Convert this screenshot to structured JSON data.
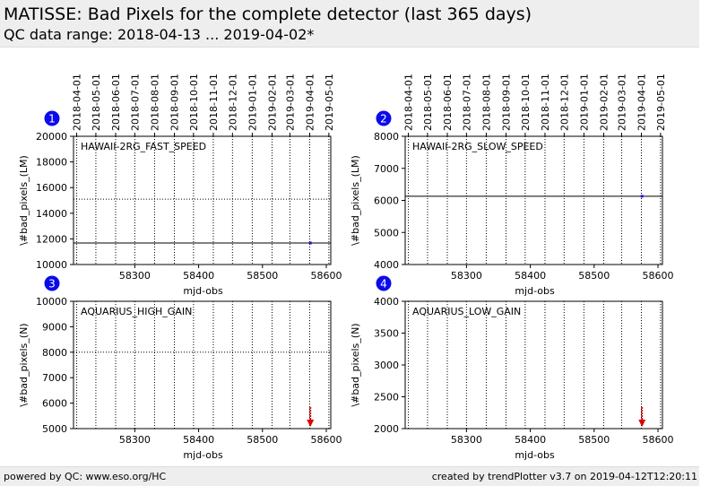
{
  "page": {
    "title": "MATISSE: Bad Pixels for the complete detector (last 365 days)",
    "subtitle": "QC data range: 2018-04-13 ... 2019-04-02*"
  },
  "footer": {
    "left": "powered by QC: www.eso.org/HC",
    "right": "created by trendPlotter v3.7 on 2019-04-12T12:20:11"
  },
  "colors": {
    "data_point": "#1a1ad4",
    "marker_badge": "#0b0bea",
    "arrow": "#dd0000",
    "axis": "#000000"
  },
  "chart_data": [
    {
      "type": "scatter",
      "panel_number": "1",
      "label": "HAWAII-2RG_FAST_SPEED",
      "xlabel": "mjd-obs",
      "ylabel": "\\#bad_pixels_(LM)",
      "xlim": [
        58204,
        58607
      ],
      "ylim": [
        10000,
        20000
      ],
      "xticks": [
        58300,
        58400,
        58500,
        58600
      ],
      "yticks": [
        10000,
        12000,
        14000,
        16000,
        18000,
        20000
      ],
      "ytick_labels": [
        "10000",
        "12000",
        "14000",
        "16000",
        "18000",
        "20000"
      ],
      "date_ticks": [
        "2018-04-01",
        "2018-05-01",
        "2018-06-01",
        "2018-07-01",
        "2018-08-01",
        "2018-09-01",
        "2018-10-01",
        "2018-11-01",
        "2018-12-01",
        "2019-01-01",
        "2019-02-01",
        "2019-03-01",
        "2019-04-01",
        "2019-05-01"
      ],
      "date_tick_mjd": [
        58209,
        58239,
        58270,
        58300,
        58331,
        58362,
        58392,
        58423,
        58453,
        58484,
        58515,
        58543,
        58574,
        58604
      ],
      "reference_line": 11680,
      "threshold_line": 15100,
      "points": [
        {
          "x": 58575,
          "y": 11680
        }
      ],
      "out_of_range": []
    },
    {
      "type": "scatter",
      "panel_number": "2",
      "label": "HAWAII-2RG_SLOW_SPEED",
      "xlabel": "mjd-obs",
      "ylabel": "\\#bad_pixels_(LM)",
      "xlim": [
        58204,
        58607
      ],
      "ylim": [
        4000,
        8000
      ],
      "xticks": [
        58300,
        58400,
        58500,
        58600
      ],
      "yticks": [
        4000,
        5000,
        6000,
        7000,
        8000
      ],
      "ytick_labels": [
        "4000",
        "5000",
        "6000",
        "7000",
        "8000"
      ],
      "date_ticks": [
        "2018-04-01",
        "2018-05-01",
        "2018-06-01",
        "2018-07-01",
        "2018-08-01",
        "2018-09-01",
        "2018-10-01",
        "2018-11-01",
        "2018-12-01",
        "2019-01-01",
        "2019-02-01",
        "2019-03-01",
        "2019-04-01",
        "2019-05-01"
      ],
      "date_tick_mjd": [
        58209,
        58239,
        58270,
        58300,
        58331,
        58362,
        58392,
        58423,
        58453,
        58484,
        58515,
        58543,
        58574,
        58604
      ],
      "reference_line": 6130,
      "threshold_line": null,
      "points": [
        {
          "x": 58575,
          "y": 6130
        }
      ],
      "out_of_range": []
    },
    {
      "type": "scatter",
      "panel_number": "3",
      "label": "AQUARIUS_HIGH_GAIN",
      "xlabel": "mjd-obs",
      "ylabel": "\\#bad_pixels_(N)",
      "xlim": [
        58204,
        58607
      ],
      "ylim": [
        5000,
        10000
      ],
      "xticks": [
        58300,
        58400,
        58500,
        58600
      ],
      "yticks": [
        5000,
        6000,
        7000,
        8000,
        9000,
        10000
      ],
      "ytick_labels": [
        "5000",
        "6000",
        "7000",
        "8000",
        "9000",
        "10000"
      ],
      "date_ticks": [],
      "date_tick_mjd": [
        58209,
        58239,
        58270,
        58300,
        58331,
        58362,
        58392,
        58423,
        58453,
        58484,
        58515,
        58543,
        58574,
        58604
      ],
      "reference_line": null,
      "threshold_line": 8000,
      "points": [],
      "out_of_range": [
        {
          "x": 58575,
          "direction": "down"
        }
      ]
    },
    {
      "type": "scatter",
      "panel_number": "4",
      "label": "AQUARIUS_LOW_GAIN",
      "xlabel": "mjd-obs",
      "ylabel": "\\#bad_pixels_(N)",
      "xlim": [
        58204,
        58607
      ],
      "ylim": [
        2000,
        4000
      ],
      "xticks": [
        58300,
        58400,
        58500,
        58600
      ],
      "yticks": [
        2000,
        2500,
        3000,
        3500,
        4000
      ],
      "ytick_labels": [
        "2000",
        "2500",
        "3000",
        "3500",
        "4000"
      ],
      "date_ticks": [],
      "date_tick_mjd": [
        58209,
        58239,
        58270,
        58300,
        58331,
        58362,
        58392,
        58423,
        58453,
        58484,
        58515,
        58543,
        58574,
        58604
      ],
      "reference_line": null,
      "threshold_line": null,
      "points": [],
      "out_of_range": [
        {
          "x": 58575,
          "direction": "down"
        }
      ]
    }
  ]
}
